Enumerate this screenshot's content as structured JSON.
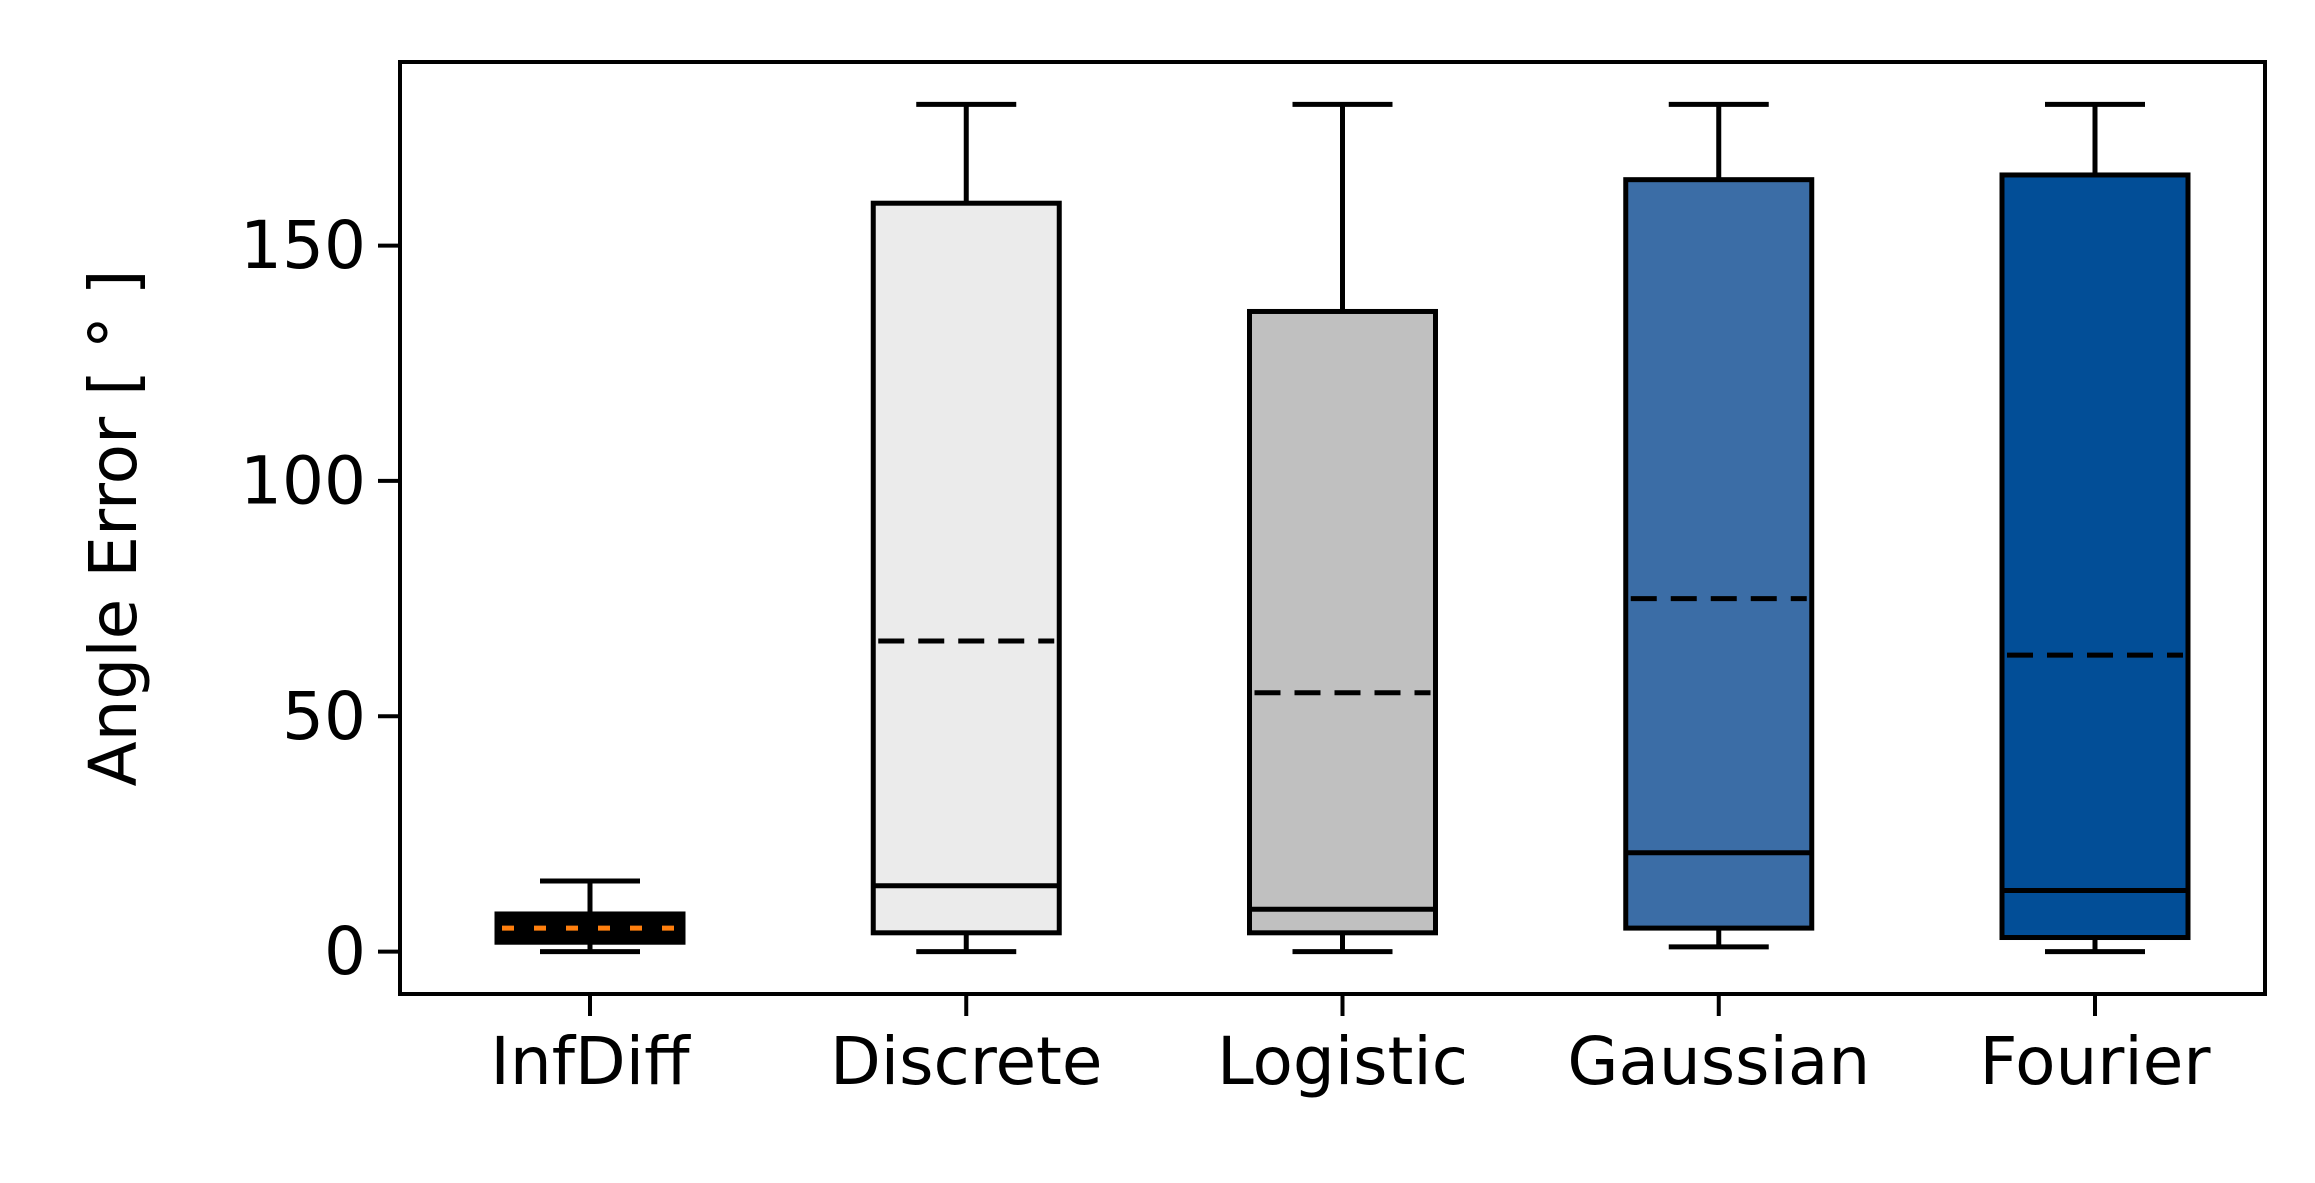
{
  "chart_data": {
    "type": "box",
    "categories": [
      "InfDiff",
      "Discrete",
      "Logistic",
      "Gaussian",
      "Fourier"
    ],
    "ylabel": "Angle Error [ ° ]",
    "xlabel": "",
    "title": "",
    "ylim": [
      -9,
      189
    ],
    "yticks": [
      0,
      50,
      100,
      150
    ],
    "grid": false,
    "legend": "none",
    "boxes": [
      {
        "category": "InfDiff",
        "whisker_low": 0,
        "q1": 2,
        "median": 5,
        "mean": 5,
        "q3": 8,
        "whisker_high": 15,
        "color": "#000000",
        "mean_line_color": "#ff7f0e"
      },
      {
        "category": "Discrete",
        "whisker_low": 0,
        "q1": 4,
        "median": 14,
        "mean": 66,
        "q3": 159,
        "whisker_high": 180,
        "color": "#ebebeb",
        "mean_line_color": "#000000"
      },
      {
        "category": "Logistic",
        "whisker_low": 0,
        "q1": 4,
        "median": 9,
        "mean": 55,
        "q3": 136,
        "whisker_high": 180,
        "color": "#c0c0c0",
        "mean_line_color": "#000000"
      },
      {
        "category": "Gaussian",
        "whisker_low": 1,
        "q1": 5,
        "median": 21,
        "mean": 75,
        "q3": 164,
        "whisker_high": 180,
        "color": "#3b6da6",
        "mean_line_color": "#000000"
      },
      {
        "category": "Fourier",
        "whisker_low": 0,
        "q1": 3,
        "median": 13,
        "mean": 63,
        "q3": 165,
        "whisker_high": 180,
        "color": "#024e97",
        "mean_line_color": "#000000"
      }
    ]
  }
}
